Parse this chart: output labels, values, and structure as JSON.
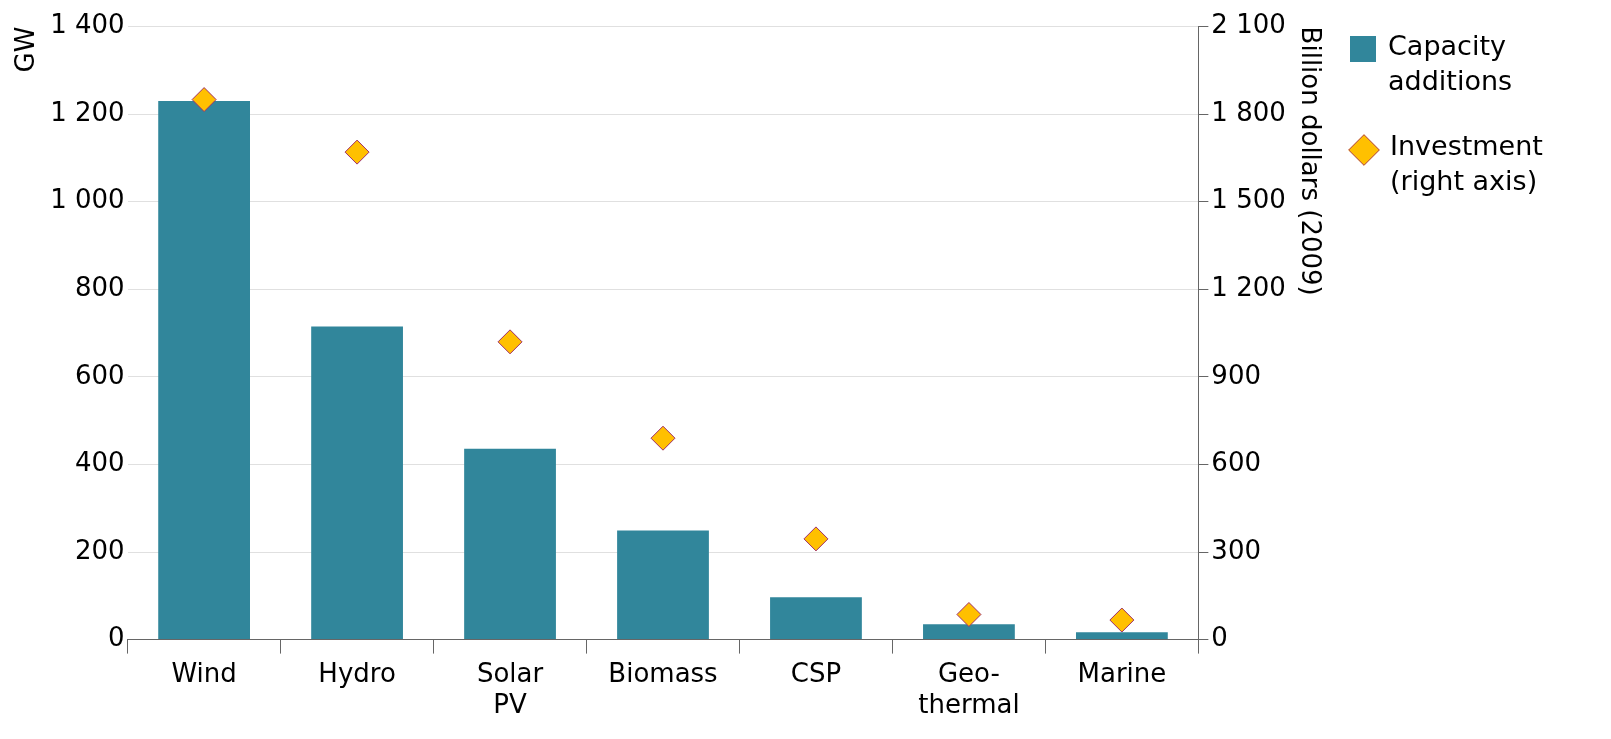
{
  "chart_data": {
    "type": "bar",
    "ylabel": "GW",
    "y2label": "Billion dollars (2009)",
    "categories": [
      "Wind",
      "Hydro",
      "Solar\nPV",
      "Biomass",
      "CSP",
      "Geo-\nthermal",
      "Marine"
    ],
    "series": [
      {
        "name": "Capacity\nadditions",
        "color": "#31869b",
        "values": [
          1230,
          715,
          436,
          249,
          97,
          35,
          17
        ]
      },
      {
        "name": "Investment\n(right axis)",
        "type": "scatter",
        "color": "#ffc000",
        "axis": "y2",
        "marker": "diamond",
        "values": [
          1850,
          1670,
          1020,
          690,
          345,
          86,
          67
        ]
      }
    ],
    "ylim": [
      0,
      1400
    ],
    "yticks": [
      0,
      200,
      400,
      600,
      800,
      {
        "value": 1000,
        "label": "1 000"
      },
      {
        "value": 1200,
        "label": "1 200"
      },
      {
        "value": 1400,
        "label": "1 400"
      }
    ],
    "y2lim": [
      0,
      2100
    ],
    "y2ticks": [
      0,
      300,
      600,
      900,
      {
        "value": 1200,
        "label": "1 200"
      },
      {
        "value": 1500,
        "label": "1 500"
      },
      {
        "value": 1800,
        "label": "1 800"
      },
      {
        "value": 2100,
        "label": "2 100"
      }
    ],
    "grid": "y",
    "legend": "right"
  }
}
